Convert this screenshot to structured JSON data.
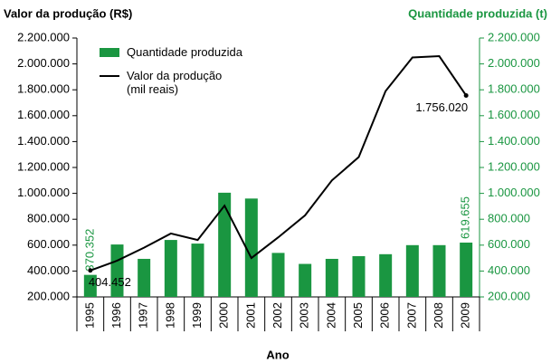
{
  "chart_data": {
    "type": "bar-line",
    "y_label": "Valor da produção (R$)",
    "y2_label": "Quantidade produzida (t)",
    "x_label": "Ano",
    "categories": [
      "1995",
      "1996",
      "1997",
      "1998",
      "1999",
      "2000",
      "2001",
      "2002",
      "2003",
      "2004",
      "2005",
      "2006",
      "2007",
      "2008",
      "2009"
    ],
    "series": [
      {
        "name": "Quantidade produzida",
        "type": "bar",
        "axis": "y2",
        "color": "#1a9641",
        "values": [
          370352,
          605000,
          494000,
          640000,
          612000,
          1005000,
          960000,
          540000,
          455000,
          494000,
          515000,
          530000,
          600000,
          600000,
          619655
        ],
        "value_labels": [
          "370.352",
          null,
          null,
          null,
          null,
          null,
          null,
          null,
          null,
          null,
          null,
          null,
          null,
          null,
          "619.655"
        ]
      },
      {
        "name": "Valor da produção\n(mil reais)",
        "type": "line",
        "axis": "y",
        "color": "#000000",
        "values": [
          404452,
          480000,
          580000,
          690000,
          640000,
          905000,
          500000,
          660000,
          830000,
          1100000,
          1280000,
          1790000,
          2050000,
          2060000,
          1756020
        ],
        "value_labels": [
          "404.452",
          null,
          null,
          null,
          null,
          null,
          null,
          null,
          null,
          null,
          null,
          null,
          null,
          null,
          "1.756.020"
        ]
      }
    ],
    "ylim": [
      200000,
      2200000
    ],
    "yticks": [
      {
        "value": 200000,
        "label": "200.000"
      },
      {
        "value": 400000,
        "label": "400.000"
      },
      {
        "value": 600000,
        "label": "600.000"
      },
      {
        "value": 800000,
        "label": "800.000"
      },
      {
        "value": 1000000,
        "label": "1.000.000"
      },
      {
        "value": 1200000,
        "label": "1.200.000"
      },
      {
        "value": 1400000,
        "label": "1.400.000"
      },
      {
        "value": 1600000,
        "label": "1.600.000"
      },
      {
        "value": 1800000,
        "label": "1.800.000"
      },
      {
        "value": 2000000,
        "label": "2.000.000"
      },
      {
        "value": 2200000,
        "label": "2.200.000"
      }
    ],
    "y2lim": [
      200000,
      2200000
    ],
    "y2ticks": [
      {
        "value": 200000,
        "label": "200.000"
      },
      {
        "value": 400000,
        "label": "400.000"
      },
      {
        "value": 600000,
        "label": "600.000"
      },
      {
        "value": 800000,
        "label": "800.000"
      },
      {
        "value": 1000000,
        "label": "1.000.000"
      },
      {
        "value": 1200000,
        "label": "1.200.000"
      },
      {
        "value": 1400000,
        "label": "1.400.000"
      },
      {
        "value": 1600000,
        "label": "1.600.000"
      },
      {
        "value": 1800000,
        "label": "1.800.000"
      },
      {
        "value": 2000000,
        "label": "2.000.000"
      },
      {
        "value": 2200000,
        "label": "2.200.000"
      }
    ],
    "y2_color": "#1a9641",
    "legend": "top-left"
  }
}
